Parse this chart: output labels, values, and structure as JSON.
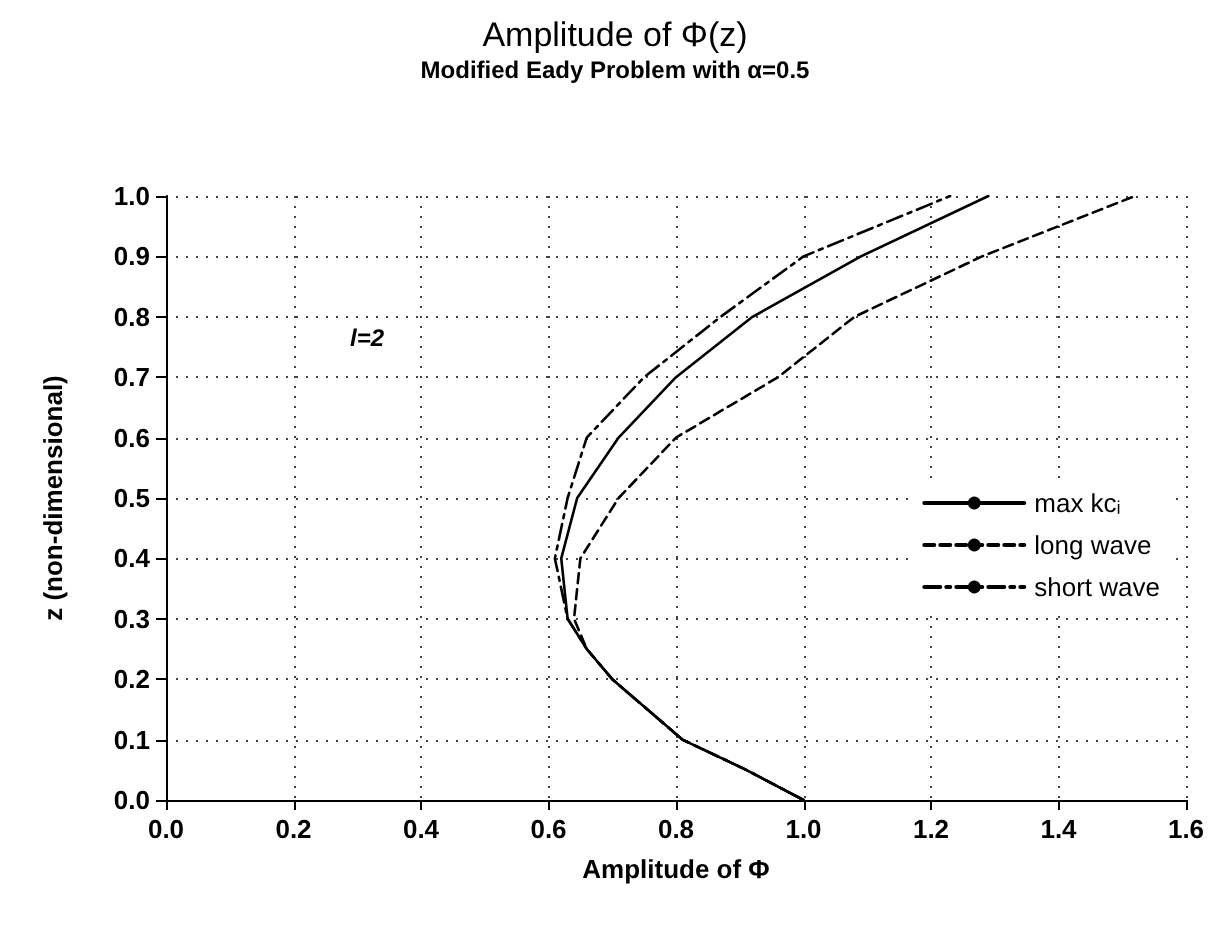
{
  "chart_data": {
    "type": "line",
    "title": "Amplitude of Φ(z)",
    "subtitle": "Modified Eady Problem with α=0.5",
    "xlabel": "Amplitude of Φ",
    "ylabel": "z (non-dimensional)",
    "annotations": [
      "l=2"
    ],
    "series": [
      {
        "name": "max kcᵢ",
        "color": "#000000",
        "line_style": "solid",
        "x": [
          1.0,
          0.91,
          0.81,
          0.7,
          0.66,
          0.63,
          0.62,
          0.645,
          0.71,
          0.8,
          0.92,
          1.09,
          1.29
        ],
        "values": [
          0.0,
          0.05,
          0.1,
          0.2,
          0.25,
          0.3,
          0.4,
          0.5,
          0.6,
          0.7,
          0.8,
          0.9,
          1.0
        ]
      },
      {
        "name": "long wave",
        "color": "#000000",
        "line_style": "dashed",
        "x": [
          1.0,
          0.91,
          0.81,
          0.7,
          0.66,
          0.64,
          0.645,
          0.65,
          0.71,
          0.8,
          0.96,
          1.08,
          1.28,
          1.52
        ],
        "values": [
          0.0,
          0.05,
          0.1,
          0.2,
          0.25,
          0.3,
          0.35,
          0.4,
          0.5,
          0.6,
          0.7,
          0.8,
          0.9,
          1.0
        ]
      },
      {
        "name": "short wave",
        "color": "#000000",
        "line_style": "dashdot",
        "x": [
          1.0,
          0.91,
          0.81,
          0.7,
          0.66,
          0.63,
          0.61,
          0.63,
          0.66,
          0.75,
          0.87,
          1.0,
          1.23
        ],
        "values": [
          0.0,
          0.05,
          0.1,
          0.2,
          0.25,
          0.3,
          0.4,
          0.5,
          0.6,
          0.7,
          0.8,
          0.9,
          1.0
        ]
      }
    ],
    "xlim": [
      0,
      1.6
    ],
    "xticks": [
      {
        "value": 0,
        "label": "0.0"
      },
      {
        "value": 0.2,
        "label": "0.2"
      },
      {
        "value": 0.4,
        "label": "0.4"
      },
      {
        "value": 0.6,
        "label": "0.6"
      },
      {
        "value": 0.8,
        "label": "0.8"
      },
      {
        "value": 1.0,
        "label": "1.0"
      },
      {
        "value": 1.2,
        "label": "1.2"
      },
      {
        "value": 1.4,
        "label": "1.4"
      },
      {
        "value": 1.6,
        "label": "1.6"
      }
    ],
    "ylim": [
      0,
      1
    ],
    "yticks": [
      {
        "value": 0,
        "label": "0.0"
      },
      {
        "value": 0.1,
        "label": "0.1"
      },
      {
        "value": 0.2,
        "label": "0.2"
      },
      {
        "value": 0.3,
        "label": "0.3"
      },
      {
        "value": 0.4,
        "label": "0.4"
      },
      {
        "value": 0.5,
        "label": "0.5"
      },
      {
        "value": 0.6,
        "label": "0.6"
      },
      {
        "value": 0.7,
        "label": "0.7"
      },
      {
        "value": 0.8,
        "label": "0.8"
      },
      {
        "value": 0.9,
        "label": "0.9"
      },
      {
        "value": 1.0,
        "label": "1.0"
      }
    ],
    "grid": true,
    "legend": "right",
    "marker": "none"
  }
}
